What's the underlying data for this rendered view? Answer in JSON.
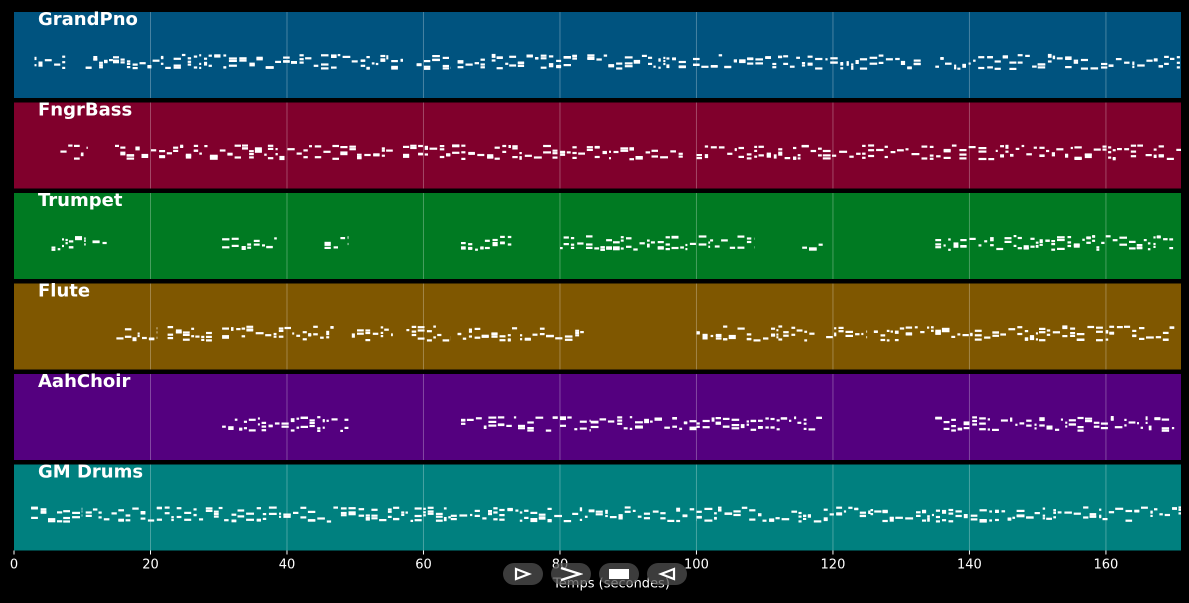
{
  "chart_data": {
    "type": "piano-roll",
    "x_axis": {
      "label": "Temps (secondes)",
      "ticks": [
        0,
        20,
        40,
        60,
        80,
        100,
        120,
        140,
        160
      ],
      "range": [
        0,
        171
      ]
    },
    "grid": true,
    "tracks": [
      {
        "name": "GrandPno",
        "color": "#00537f",
        "note_color": "#ffffff",
        "segments": [
          [
            3,
            7.5
          ],
          [
            10.5,
            14.5
          ],
          [
            14.5,
            57
          ],
          [
            59,
            64
          ],
          [
            65,
            69
          ],
          [
            70,
            82.5
          ],
          [
            84,
            98.5
          ],
          [
            99.5,
            121.5
          ],
          [
            122,
            133
          ],
          [
            135,
            171
          ]
        ]
      },
      {
        "name": "FngrBass",
        "color": "#80002c",
        "note_color": "#ffffff",
        "segments": [
          [
            6.8,
            10.8
          ],
          [
            14.8,
            55.5
          ],
          [
            57,
            98
          ],
          [
            100,
            171
          ]
        ]
      },
      {
        "name": "Trumpet",
        "color": "#007a22",
        "note_color": "#ffffff",
        "segments": [
          [
            5.5,
            10.5
          ],
          [
            11.5,
            14
          ],
          [
            30.5,
            38.5
          ],
          [
            45.5,
            49
          ],
          [
            65.5,
            73
          ],
          [
            80,
            102
          ],
          [
            102,
            108.5
          ],
          [
            115.5,
            118.5
          ],
          [
            135,
            170
          ]
        ]
      },
      {
        "name": "Flute",
        "color": "#7f5700",
        "note_color": "#ffffff",
        "segments": [
          [
            15,
            21
          ],
          [
            22.5,
            29
          ],
          [
            30.5,
            47
          ],
          [
            49.5,
            55.5
          ],
          [
            57.5,
            64
          ],
          [
            65,
            83.5
          ],
          [
            100,
            112
          ],
          [
            112,
            117.5
          ],
          [
            119,
            125
          ],
          [
            126,
            135
          ],
          [
            135,
            170
          ]
        ]
      },
      {
        "name": "AahChoir",
        "color": "#54007f",
        "note_color": "#ffffff",
        "segments": [
          [
            30.5,
            49
          ],
          [
            65.5,
            84.5
          ],
          [
            84.5,
            100
          ],
          [
            100,
            118.5
          ],
          [
            135,
            170
          ]
        ]
      },
      {
        "name": "GM Drums",
        "color": "#00807f",
        "note_color": "#ffffff",
        "segments": [
          [
            2.5,
            10
          ],
          [
            10.5,
            30
          ],
          [
            30,
            64
          ],
          [
            64,
            100
          ],
          [
            100,
            125.5
          ],
          [
            125.5,
            134.5
          ],
          [
            134.5,
            171
          ]
        ]
      }
    ]
  },
  "transport": {
    "buttons": [
      {
        "name": "play-pause",
        "icon": "play-outline-icon"
      },
      {
        "name": "next",
        "icon": "chevron-right-icon"
      },
      {
        "name": "stop",
        "icon": "stop-icon"
      },
      {
        "name": "previous",
        "icon": "triangle-left-icon"
      }
    ]
  }
}
